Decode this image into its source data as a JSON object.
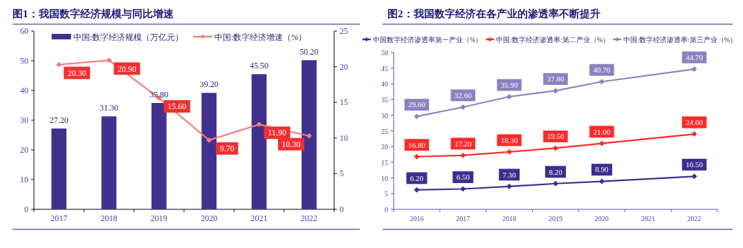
{
  "chart_data": [
    {
      "type": "bar",
      "title": "图1：我国数字经济规模与同比增速",
      "categories": [
        "2017",
        "2018",
        "2019",
        "2020",
        "2021",
        "2022"
      ],
      "series": [
        {
          "name": "中国:数字经济规模（万亿元）",
          "type": "bar",
          "color": "#41318f",
          "values": [
            27.2,
            31.3,
            35.8,
            39.2,
            45.5,
            50.2
          ],
          "value_labels": [
            "27.20",
            "31.30",
            "35.80",
            "39.20",
            "45.50",
            "50.20"
          ]
        },
        {
          "name": "中国:数字经济增速（%）",
          "type": "line",
          "axis": "y2",
          "color": "#f47c7c",
          "marker": "diamond",
          "values": [
            20.3,
            20.9,
            15.6,
            9.7,
            11.9,
            10.3
          ],
          "value_labels": [
            "20.30",
            "20.90",
            "15.60",
            "9.70",
            "11.90",
            "10.30"
          ]
        }
      ],
      "ylim": [
        0,
        60
      ],
      "yticks": [
        0,
        10,
        20,
        30,
        40,
        50,
        60
      ],
      "y2lim": [
        0,
        25
      ],
      "y2ticks": [
        0,
        5,
        10,
        15,
        20,
        25
      ],
      "legend": "top",
      "grid": false
    },
    {
      "type": "line",
      "title": "图2：我国数字经济在各产业的渗透率不断提升",
      "categories": [
        "2016",
        "2017",
        "2018",
        "2019",
        "2020",
        "2021",
        "2022"
      ],
      "series": [
        {
          "name": "中国数字经济渗透率第一产业（%）",
          "color": "#3b2f8e",
          "values": [
            6.2,
            6.5,
            7.3,
            8.2,
            8.9,
            null,
            10.5
          ],
          "value_labels": [
            "6.20",
            "6.50",
            "7.30",
            "8.20",
            "8.90",
            null,
            "10.50"
          ]
        },
        {
          "name": "中国:数字经济渗透率:第二产业（%）",
          "color": "#ff2a2a",
          "values": [
            16.8,
            17.2,
            18.3,
            19.5,
            21.0,
            null,
            24.0
          ],
          "value_labels": [
            "16.80",
            "17.20",
            "18.30",
            "19.50",
            "21.00",
            null,
            "24.00"
          ]
        },
        {
          "name": "中国:数字经济渗透率:第三产业（%）",
          "color": "#8c82c0",
          "values": [
            29.6,
            32.6,
            35.9,
            37.8,
            40.7,
            null,
            44.7
          ],
          "value_labels": [
            "29.60",
            "32.60",
            "35.90",
            "37.80",
            "40.70",
            null,
            "44.70"
          ]
        }
      ],
      "ylim": [
        0,
        50
      ],
      "yticks": [
        0,
        5,
        10,
        15,
        20,
        25,
        30,
        35,
        40,
        45,
        50
      ],
      "marker": "diamond",
      "line_style": "solid",
      "legend": "top",
      "grid": false
    }
  ]
}
